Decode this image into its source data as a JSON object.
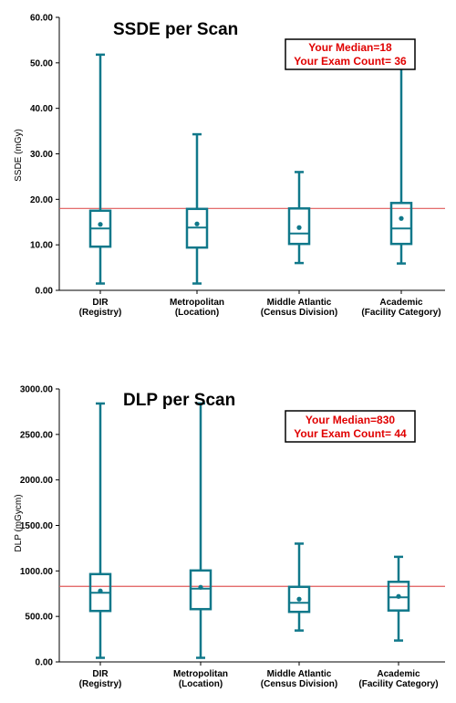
{
  "chart_data": [
    {
      "type": "boxplot",
      "title": "SSDE per Scan",
      "ylabel": "SSDE (mGy)",
      "ylim": [
        0,
        60
      ],
      "yticks": [
        "0.00",
        "10.00",
        "20.00",
        "30.00",
        "40.00",
        "50.00",
        "60.00"
      ],
      "ytick_values": [
        0,
        10,
        20,
        30,
        40,
        50,
        60
      ],
      "categories": [
        [
          "DIR",
          "(Registry)"
        ],
        [
          "Metropolitan",
          "(Location)"
        ],
        [
          "Middle Atlantic",
          "(Census Division)"
        ],
        [
          "Academic",
          "(Facility Category)"
        ]
      ],
      "boxes": [
        {
          "min": 1.5,
          "q1": 9.6,
          "median": 13.6,
          "q3": 17.5,
          "max": 51.8,
          "mean": 14.5
        },
        {
          "min": 1.5,
          "q1": 9.4,
          "median": 13.8,
          "q3": 17.9,
          "max": 34.3,
          "mean": 14.6
        },
        {
          "min": 6.0,
          "q1": 10.2,
          "median": 12.5,
          "q3": 18.0,
          "max": 26.0,
          "mean": 13.8
        },
        {
          "min": 5.9,
          "q1": 10.2,
          "median": 13.6,
          "q3": 19.2,
          "max": 51.8,
          "mean": 15.8
        }
      ],
      "reference_line": 18,
      "legend": [
        "Your Median=18",
        "Your Exam Count= 36"
      ],
      "legend_position": "top-right"
    },
    {
      "type": "boxplot",
      "title": "DLP per Scan",
      "ylabel": "DLP (mGycm)",
      "ylim": [
        0,
        3000
      ],
      "yticks": [
        "0.00",
        "500.00",
        "1000.00",
        "1500.00",
        "2000.00",
        "2500.00",
        "3000.00"
      ],
      "ytick_values": [
        0,
        500,
        1000,
        1500,
        2000,
        2500,
        3000
      ],
      "categories": [
        [
          "DIR",
          "(Registry)"
        ],
        [
          "Metropolitan",
          "(Location)"
        ],
        [
          "Middle Atlantic",
          "(Census Division)"
        ],
        [
          "Academic",
          "(Facility Category)"
        ]
      ],
      "boxes": [
        {
          "min": 45,
          "q1": 560,
          "median": 760,
          "q3": 965,
          "max": 2840,
          "mean": 780
        },
        {
          "min": 45,
          "q1": 580,
          "median": 805,
          "q3": 1005,
          "max": 2840,
          "mean": 820
        },
        {
          "min": 345,
          "q1": 550,
          "median": 650,
          "q3": 825,
          "max": 1300,
          "mean": 690
        },
        {
          "min": 235,
          "q1": 565,
          "median": 710,
          "q3": 880,
          "max": 1155,
          "mean": 720
        }
      ],
      "reference_line": 830,
      "legend": [
        "Your Median=830",
        "Your Exam Count= 44"
      ],
      "legend_position": "top-right"
    }
  ],
  "colors": {
    "box": "#10788a",
    "mean_dot": "#10788a",
    "reference_line": "#e05a5a",
    "legend_text": "#e00000"
  }
}
